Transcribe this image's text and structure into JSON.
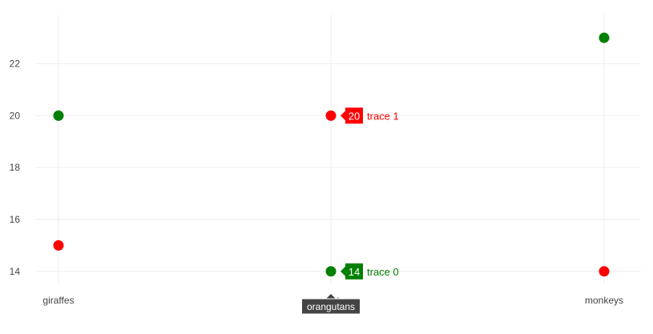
{
  "chart_data": {
    "type": "scatter",
    "categories": [
      "giraffes",
      "orangutans",
      "monkeys"
    ],
    "series": [
      {
        "name": "trace 0",
        "values": [
          20,
          14,
          23
        ],
        "color": "#008000"
      },
      {
        "name": "trace 1",
        "values": [
          15,
          20,
          14
        ],
        "color": "#ff0000"
      }
    ],
    "ylim": [
      13.5,
      23.9
    ],
    "yticks": [
      14,
      16,
      18,
      20,
      22
    ],
    "grid": true,
    "hover": {
      "category": "orangutans",
      "labels": [
        {
          "series": "trace 1",
          "value": "20",
          "name": "trace 1",
          "color": "#ff0000"
        },
        {
          "series": "trace 0",
          "value": "14",
          "name": "trace 0",
          "color": "#008000"
        }
      ]
    }
  }
}
